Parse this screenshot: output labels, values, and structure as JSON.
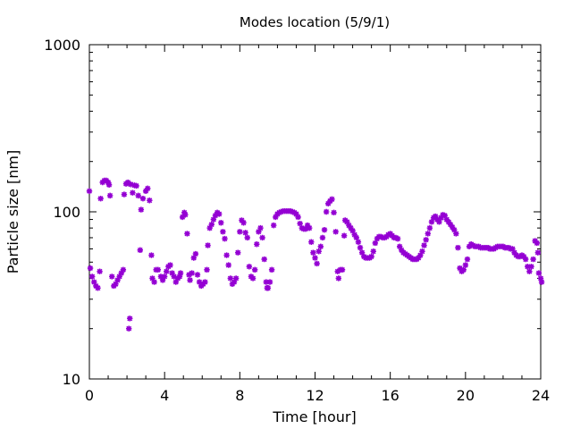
{
  "chart_data": {
    "type": "scatter",
    "title": "Modes location (5/9/1)",
    "xlabel": "Time [hour]",
    "ylabel": "Particle size [nm]",
    "xlim": [
      0,
      24
    ],
    "ylim": [
      10,
      1000
    ],
    "yscale": "log",
    "x_ticks": [
      0,
      4,
      8,
      12,
      16,
      20,
      24
    ],
    "x_tick_labels": [
      "0",
      "4",
      "8",
      "12",
      "16",
      "20",
      "24"
    ],
    "y_ticks": [
      10,
      100,
      1000
    ],
    "y_tick_labels": [
      "10",
      "100",
      "1000"
    ],
    "grid": false,
    "marker_color": "#9400d3",
    "series": [
      {
        "points": [
          [
            0.0,
            133
          ],
          [
            0.05,
            46
          ],
          [
            0.15,
            41
          ],
          [
            0.25,
            38
          ],
          [
            0.35,
            36
          ],
          [
            0.45,
            35
          ],
          [
            0.55,
            44
          ],
          [
            0.6,
            120
          ],
          [
            0.7,
            150
          ],
          [
            0.8,
            154
          ],
          [
            0.9,
            154
          ],
          [
            1.0,
            150
          ],
          [
            1.05,
            145
          ],
          [
            1.1,
            125
          ],
          [
            1.2,
            41
          ],
          [
            1.3,
            36
          ],
          [
            1.4,
            37
          ],
          [
            1.5,
            39
          ],
          [
            1.6,
            41
          ],
          [
            1.7,
            43
          ],
          [
            1.8,
            45
          ],
          [
            1.85,
            127
          ],
          [
            1.95,
            147
          ],
          [
            2.05,
            150
          ],
          [
            2.1,
            20
          ],
          [
            2.15,
            23
          ],
          [
            2.2,
            146
          ],
          [
            2.3,
            130
          ],
          [
            2.4,
            144
          ],
          [
            2.5,
            143
          ],
          [
            2.6,
            125
          ],
          [
            2.7,
            59
          ],
          [
            2.75,
            103
          ],
          [
            2.85,
            120
          ],
          [
            3.0,
            133
          ],
          [
            3.1,
            138
          ],
          [
            3.2,
            117
          ],
          [
            3.3,
            55
          ],
          [
            3.35,
            40
          ],
          [
            3.45,
            38
          ],
          [
            3.55,
            45
          ],
          [
            3.65,
            45
          ],
          [
            3.8,
            41
          ],
          [
            3.9,
            39
          ],
          [
            4.0,
            41
          ],
          [
            4.1,
            44
          ],
          [
            4.2,
            47
          ],
          [
            4.3,
            48
          ],
          [
            4.4,
            43
          ],
          [
            4.5,
            41
          ],
          [
            4.6,
            38
          ],
          [
            4.7,
            40
          ],
          [
            4.8,
            41
          ],
          [
            4.85,
            43
          ],
          [
            4.95,
            93
          ],
          [
            5.05,
            99
          ],
          [
            5.1,
            96
          ],
          [
            5.2,
            74
          ],
          [
            5.3,
            42
          ],
          [
            5.35,
            39
          ],
          [
            5.45,
            43
          ],
          [
            5.55,
            53
          ],
          [
            5.65,
            56
          ],
          [
            5.75,
            42
          ],
          [
            5.85,
            38
          ],
          [
            5.95,
            36
          ],
          [
            6.05,
            37
          ],
          [
            6.15,
            38
          ],
          [
            6.25,
            45
          ],
          [
            6.3,
            63
          ],
          [
            6.4,
            80
          ],
          [
            6.5,
            84
          ],
          [
            6.6,
            90
          ],
          [
            6.7,
            95
          ],
          [
            6.8,
            99
          ],
          [
            6.9,
            97
          ],
          [
            7.0,
            86
          ],
          [
            7.1,
            76
          ],
          [
            7.2,
            69
          ],
          [
            7.3,
            55
          ],
          [
            7.4,
            48
          ],
          [
            7.5,
            40
          ],
          [
            7.6,
            37
          ],
          [
            7.7,
            38
          ],
          [
            7.8,
            40
          ],
          [
            7.9,
            57
          ],
          [
            8.0,
            76
          ],
          [
            8.1,
            89
          ],
          [
            8.2,
            86
          ],
          [
            8.3,
            75
          ],
          [
            8.4,
            70
          ],
          [
            8.5,
            47
          ],
          [
            8.6,
            41
          ],
          [
            8.7,
            40
          ],
          [
            8.8,
            45
          ],
          [
            8.9,
            64
          ],
          [
            9.0,
            76
          ],
          [
            9.1,
            80
          ],
          [
            9.2,
            70
          ],
          [
            9.3,
            52
          ],
          [
            9.4,
            38
          ],
          [
            9.45,
            35
          ],
          [
            9.5,
            35
          ],
          [
            9.6,
            38
          ],
          [
            9.7,
            45
          ],
          [
            9.8,
            83
          ],
          [
            9.9,
            93
          ],
          [
            10.0,
            97
          ],
          [
            10.1,
            99
          ],
          [
            10.2,
            100
          ],
          [
            10.3,
            101
          ],
          [
            10.4,
            101
          ],
          [
            10.5,
            101
          ],
          [
            10.6,
            101
          ],
          [
            10.7,
            101
          ],
          [
            10.8,
            100
          ],
          [
            10.9,
            99
          ],
          [
            11.0,
            97
          ],
          [
            11.1,
            93
          ],
          [
            11.2,
            85
          ],
          [
            11.3,
            80
          ],
          [
            11.4,
            79
          ],
          [
            11.5,
            79
          ],
          [
            11.6,
            83
          ],
          [
            11.7,
            80
          ],
          [
            11.8,
            66
          ],
          [
            11.9,
            57
          ],
          [
            12.0,
            53
          ],
          [
            12.1,
            49
          ],
          [
            12.2,
            58
          ],
          [
            12.3,
            62
          ],
          [
            12.4,
            70
          ],
          [
            12.5,
            78
          ],
          [
            12.6,
            100
          ],
          [
            12.7,
            112
          ],
          [
            12.8,
            116
          ],
          [
            12.9,
            119
          ],
          [
            13.0,
            99
          ],
          [
            13.1,
            76
          ],
          [
            13.2,
            44
          ],
          [
            13.25,
            40
          ],
          [
            13.35,
            45
          ],
          [
            13.45,
            45
          ],
          [
            13.55,
            72
          ],
          [
            13.6,
            89
          ],
          [
            13.7,
            87
          ],
          [
            13.8,
            83
          ],
          [
            13.9,
            80
          ],
          [
            14.0,
            77
          ],
          [
            14.1,
            73
          ],
          [
            14.2,
            70
          ],
          [
            14.3,
            66
          ],
          [
            14.4,
            61
          ],
          [
            14.5,
            57
          ],
          [
            14.6,
            54
          ],
          [
            14.7,
            53
          ],
          [
            14.8,
            53
          ],
          [
            14.9,
            53
          ],
          [
            15.0,
            54
          ],
          [
            15.1,
            58
          ],
          [
            15.2,
            65
          ],
          [
            15.3,
            69
          ],
          [
            15.4,
            71
          ],
          [
            15.5,
            71
          ],
          [
            15.6,
            70
          ],
          [
            15.7,
            70
          ],
          [
            15.8,
            71
          ],
          [
            15.9,
            73
          ],
          [
            16.0,
            74
          ],
          [
            16.1,
            72
          ],
          [
            16.2,
            70
          ],
          [
            16.3,
            70
          ],
          [
            16.4,
            69
          ],
          [
            16.5,
            62
          ],
          [
            16.6,
            59
          ],
          [
            16.7,
            57
          ],
          [
            16.8,
            56
          ],
          [
            16.9,
            55
          ],
          [
            17.0,
            54
          ],
          [
            17.1,
            53
          ],
          [
            17.2,
            52
          ],
          [
            17.3,
            52
          ],
          [
            17.4,
            52
          ],
          [
            17.5,
            53
          ],
          [
            17.6,
            55
          ],
          [
            17.7,
            58
          ],
          [
            17.8,
            63
          ],
          [
            17.9,
            68
          ],
          [
            18.0,
            74
          ],
          [
            18.1,
            80
          ],
          [
            18.2,
            87
          ],
          [
            18.3,
            92
          ],
          [
            18.4,
            94
          ],
          [
            18.5,
            90
          ],
          [
            18.6,
            87
          ],
          [
            18.7,
            92
          ],
          [
            18.8,
            96
          ],
          [
            18.9,
            95
          ],
          [
            19.0,
            90
          ],
          [
            19.1,
            87
          ],
          [
            19.2,
            84
          ],
          [
            19.3,
            81
          ],
          [
            19.4,
            78
          ],
          [
            19.5,
            74
          ],
          [
            19.6,
            61
          ],
          [
            19.7,
            46
          ],
          [
            19.8,
            44
          ],
          [
            19.9,
            45
          ],
          [
            20.0,
            48
          ],
          [
            20.1,
            52
          ],
          [
            20.2,
            62
          ],
          [
            20.3,
            64
          ],
          [
            20.4,
            63
          ],
          [
            20.5,
            62
          ],
          [
            20.6,
            62
          ],
          [
            20.7,
            62
          ],
          [
            20.8,
            61
          ],
          [
            20.9,
            61
          ],
          [
            21.0,
            61
          ],
          [
            21.1,
            61
          ],
          [
            21.2,
            61
          ],
          [
            21.3,
            60
          ],
          [
            21.4,
            60
          ],
          [
            21.5,
            60
          ],
          [
            21.6,
            61
          ],
          [
            21.7,
            62
          ],
          [
            21.8,
            62
          ],
          [
            21.9,
            62
          ],
          [
            22.0,
            62
          ],
          [
            22.1,
            61
          ],
          [
            22.2,
            61
          ],
          [
            22.3,
            61
          ],
          [
            22.4,
            60
          ],
          [
            22.5,
            60
          ],
          [
            22.6,
            57
          ],
          [
            22.7,
            55
          ],
          [
            22.8,
            54
          ],
          [
            22.9,
            54
          ],
          [
            23.0,
            55
          ],
          [
            23.1,
            54
          ],
          [
            23.2,
            52
          ],
          [
            23.3,
            47
          ],
          [
            23.4,
            44
          ],
          [
            23.5,
            47
          ],
          [
            23.6,
            52
          ],
          [
            23.7,
            67
          ],
          [
            23.8,
            65
          ],
          [
            23.85,
            57
          ],
          [
            23.9,
            43
          ],
          [
            24.0,
            40
          ],
          [
            24.05,
            38
          ]
        ]
      }
    ]
  }
}
